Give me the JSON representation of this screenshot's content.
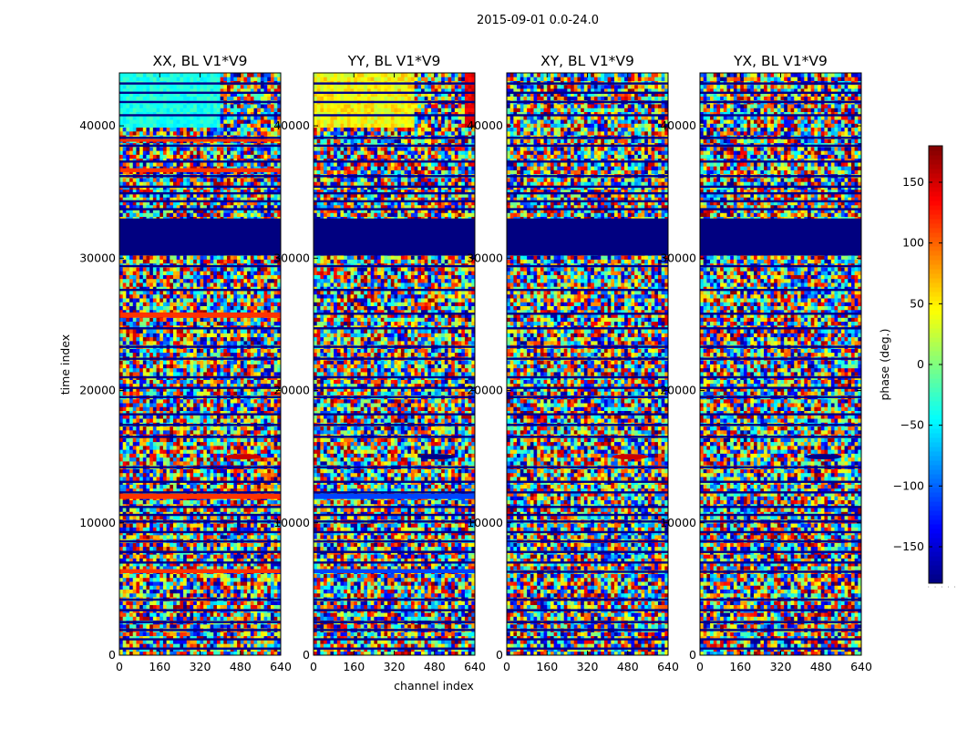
{
  "figure": {
    "suptitle": "2015-09-01 0.0-24.0"
  },
  "chart_data": {
    "type": "heatmap",
    "ylabel": "time index",
    "xlabel": "channel index",
    "xlim": [
      0,
      640
    ],
    "ylim": [
      0,
      44000
    ],
    "xticks": [
      "0",
      "160",
      "320",
      "480",
      "640"
    ],
    "yticks": [
      "0",
      "10000",
      "20000",
      "30000",
      "40000"
    ],
    "panels": [
      {
        "title": "XX, BL V1*V9"
      },
      {
        "title": "YY, BL V1*V9"
      },
      {
        "title": "XY, BL V1*V9"
      },
      {
        "title": "YX, BL V1*V9"
      }
    ],
    "colorbar": {
      "label": "phase (deg.)",
      "range": [
        -180,
        180
      ],
      "ticks": [
        "150",
        "100",
        "50",
        "0",
        "−50",
        "−100",
        "−150"
      ],
      "tick_values": [
        150,
        100,
        50,
        0,
        -50,
        -100,
        -150
      ],
      "cmap": "jet"
    },
    "features": {
      "flagged_band": [
        30200,
        33000
      ],
      "flag_lines": [
        500,
        1200,
        1900,
        2500,
        3400,
        4200,
        6300,
        7000,
        7800,
        8600,
        9300,
        10100,
        10600,
        11200,
        12300,
        13100,
        14200,
        16500,
        17400,
        18200,
        19500,
        20200,
        21000,
        22400,
        23300,
        24700,
        25800,
        27600,
        29400,
        33700,
        34300,
        34900,
        35400,
        36200,
        37300,
        38500,
        39100,
        40800,
        41800,
        42500,
        43200
      ],
      "xx_red_bands": [
        [
          11800,
          12200
        ],
        [
          6200,
          6500
        ],
        [
          36500,
          36800
        ],
        [
          38800,
          39000
        ],
        [
          25500,
          25900
        ]
      ],
      "yy_blue_bands": [
        [
          11800,
          12200
        ],
        [
          6200,
          6500
        ]
      ],
      "fringe_center": {
        "x": 490,
        "y": 15000
      }
    }
  }
}
